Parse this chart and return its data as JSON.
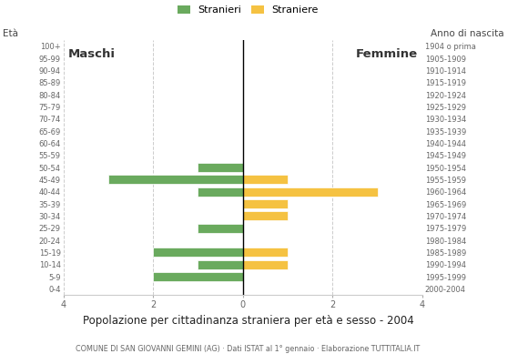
{
  "age_groups": [
    "0-4",
    "5-9",
    "10-14",
    "15-19",
    "20-24",
    "25-29",
    "30-34",
    "35-39",
    "40-44",
    "45-49",
    "50-54",
    "55-59",
    "60-64",
    "65-69",
    "70-74",
    "75-79",
    "80-84",
    "85-89",
    "90-94",
    "95-99",
    "100+"
  ],
  "birth_years": [
    "2000-2004",
    "1995-1999",
    "1990-1994",
    "1985-1989",
    "1980-1984",
    "1975-1979",
    "1970-1974",
    "1965-1969",
    "1960-1964",
    "1955-1959",
    "1950-1954",
    "1945-1949",
    "1940-1944",
    "1935-1939",
    "1930-1934",
    "1925-1929",
    "1920-1924",
    "1915-1919",
    "1910-1914",
    "1905-1909",
    "1904 o prima"
  ],
  "males": [
    0,
    2,
    1,
    2,
    0,
    1,
    0,
    0,
    1,
    3,
    1,
    0,
    0,
    0,
    0,
    0,
    0,
    0,
    0,
    0,
    0
  ],
  "females": [
    0,
    0,
    1,
    1,
    0,
    0,
    1,
    1,
    3,
    1,
    0,
    0,
    0,
    0,
    0,
    0,
    0,
    0,
    0,
    0,
    0
  ],
  "male_color": "#6aaa5e",
  "female_color": "#f5c242",
  "background_color": "#ffffff",
  "grid_color": "#cccccc",
  "title": "Popolazione per cittadinanza straniera per età e sesso - 2004",
  "subtitle": "COMUNE DI SAN GIOVANNI GEMINI (AG) · Dati ISTAT al 1° gennaio · Elaborazione TUTTITALIA.IT",
  "ylabel_left": "Età",
  "ylabel_right": "Anno di nascita",
  "xlabel_left": "Maschi",
  "xlabel_right": "Femmine",
  "legend_male": "Stranieri",
  "legend_female": "Straniere",
  "xlim": 4,
  "bar_height": 0.75
}
